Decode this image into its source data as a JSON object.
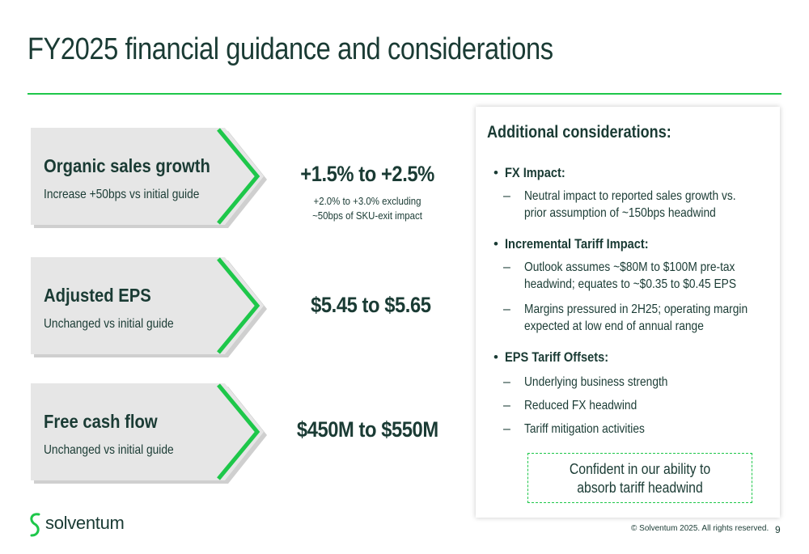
{
  "slide": {
    "title": "FY2025 financial guidance and considerations",
    "metrics": [
      {
        "name": "Organic sales growth",
        "subtitle": "Increase +50bps vs initial guide",
        "value": "+1.5% to +2.5%",
        "note_line1": "+2.0% to +3.0% excluding",
        "note_line2": "~50bps of SKU-exit impact"
      },
      {
        "name": "Adjusted EPS",
        "subtitle": "Unchanged vs initial guide",
        "value": "$5.45 to $5.65"
      },
      {
        "name": "Free cash flow",
        "subtitle": "Unchanged vs initial guide",
        "value": "$450M to $550M"
      }
    ],
    "considerations": {
      "title": "Additional considerations:",
      "fx_label": "FX Impact:",
      "fx_items": [
        [
          "Neutral impact to reported sales growth vs.",
          "prior assumption of ~150bps headwind"
        ]
      ],
      "tariff_label": "Incremental Tariff Impact:",
      "tariff_items": [
        [
          "Outlook assumes ~$80M to $100M pre-tax",
          "headwind; equates to ~$0.35 to $0.45 EPS"
        ],
        [
          "Margins pressured in 2H25; operating margin",
          "expected at low end of annual range"
        ]
      ],
      "offsets_label": "EPS Tariff Offsets:",
      "offsets_items": [
        "Underlying business strength",
        "Reduced FX headwind",
        "Tariff mitigation activities"
      ],
      "callout_line1": "Confident in our ability to",
      "callout_line2": "absorb tariff headwind"
    },
    "footer": {
      "brand": "solventum",
      "copyright": "© Solventum 2025. All rights reserved.",
      "page": "9"
    },
    "colors": {
      "accent_green": "#1ec74a",
      "text_dark": "#1a3b34",
      "box_gray": "#e6e6e6"
    }
  }
}
